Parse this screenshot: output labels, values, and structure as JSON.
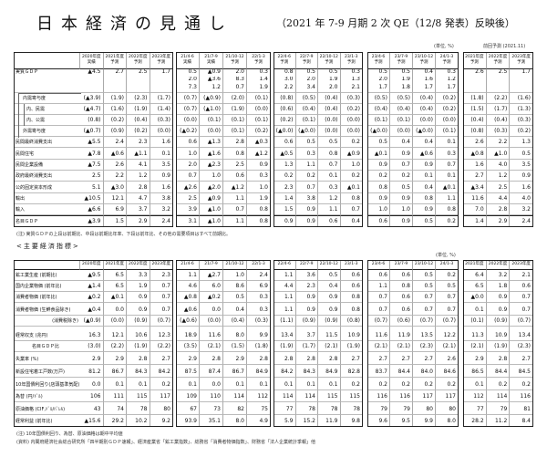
{
  "title": "日本経済の見通し",
  "subtitle": "（2021 年 7-9 月期 2 次 QE（12/8 発表）反映後）",
  "table1": {
    "unit": "(単位, %)",
    "prev_label": "前回予測 (2021.11)",
    "headers": [
      [
        "2020年度",
        "実績"
      ],
      [
        "2021年度",
        "予測"
      ],
      [
        "2022年度",
        "予測"
      ],
      [
        "2023年度",
        "予測"
      ],
      [
        "21/4-6",
        "実績"
      ],
      [
        "21/7-9",
        "実績"
      ],
      [
        "21/10-12",
        "予測"
      ],
      [
        "22/1-3",
        "予測"
      ],
      [
        "22/4-6",
        "予測"
      ],
      [
        "22/7-9",
        "予測"
      ],
      [
        "22/10-12",
        "予測"
      ],
      [
        "23/1-3",
        "予測"
      ],
      [
        "23/4-6",
        "予測"
      ],
      [
        "23/7-9",
        "予測"
      ],
      [
        "23/10-12",
        "予測"
      ],
      [
        "24/1-3",
        "予測"
      ],
      [
        "2021年度",
        "予測"
      ],
      [
        "2022年度",
        "予測"
      ],
      [
        "2023年度",
        "予測"
      ]
    ],
    "rows": [
      {
        "label": "実質ＧＤＰ",
        "values": [
          "▲4.5",
          "2.7",
          "2.5",
          "1.7",
          "0.5",
          "▲0.9",
          "2.0",
          "0.3",
          "0.8",
          "0.5",
          "0.5",
          "0.3",
          "0.5",
          "0.5",
          "0.4",
          "0.3",
          "2.6",
          "2.5",
          "1.7"
        ]
      },
      {
        "label": "",
        "values": [
          "",
          "",
          "",
          "",
          "2.0",
          "▲3.6",
          "8.3",
          "1.4",
          "3.0",
          "2.0",
          "1.9",
          "1.3",
          "2.0",
          "1.9",
          "1.6",
          "1.2",
          "",
          "",
          ""
        ]
      },
      {
        "label": "",
        "values": [
          "",
          "",
          "",
          "",
          "7.3",
          "1.2",
          "0.7",
          "1.9",
          "2.2",
          "3.4",
          "2.0",
          "2.1",
          "1.7",
          "1.8",
          "1.7",
          "1.7",
          "",
          "",
          ""
        ]
      },
      {
        "label": "内需寄与度",
        "values": [
          "(▲3.9)",
          "(1.9)",
          "(2.3)",
          "(1.7)",
          "(0.7)",
          "(▲0.9)",
          "(2.0)",
          "(0.1)",
          "(0.8)",
          "(0.5)",
          "(0.4)",
          "(0.3)",
          "(0.5)",
          "(0.5)",
          "(0.4)",
          "(0.2)",
          "(1.8)",
          "(2.2)",
          "(1.6)"
        ]
      },
      {
        "label": "内、民需",
        "values": [
          "(▲4.7)",
          "(1.6)",
          "(1.9)",
          "(1.4)",
          "(0.7)",
          "(▲1.0)",
          "(1.9)",
          "(0.0)",
          "(0.6)",
          "(0.4)",
          "(0.4)",
          "(0.2)",
          "(0.4)",
          "(0.4)",
          "(0.4)",
          "(0.2)",
          "(1.5)",
          "(1.7)",
          "(1.3)"
        ]
      },
      {
        "label": "内、公需",
        "values": [
          "(0.8)",
          "(0.2)",
          "(0.4)",
          "(0.3)",
          "(0.0)",
          "(0.1)",
          "(0.1)",
          "(0.1)",
          "(0.2)",
          "(0.1)",
          "(0.0)",
          "(0.0)",
          "(0.1)",
          "(0.1)",
          "(0.0)",
          "(0.0)",
          "(0.4)",
          "(0.4)",
          "(0.3)"
        ]
      },
      {
        "label": "外需寄与度",
        "values": [
          "(▲0.7)",
          "(0.9)",
          "(0.2)",
          "(0.0)",
          "(▲0.2)",
          "(0.0)",
          "(0.1)",
          "(0.2)",
          "(▲0.0)",
          "(▲0.0)",
          "(0.0)",
          "(0.0)",
          "(▲0.0)",
          "(0.0)",
          "(▲0.0)",
          "(0.1)",
          "(0.8)",
          "(0.3)",
          "(0.2)"
        ]
      },
      {
        "label": "民間最終消費支出",
        "values": [
          "▲5.5",
          "2.4",
          "2.3",
          "1.6",
          "0.6",
          "▲1.3",
          "2.8",
          "▲0.3",
          "0.6",
          "0.5",
          "0.5",
          "0.2",
          "0.5",
          "0.4",
          "0.4",
          "0.1",
          "2.6",
          "2.2",
          "1.3"
        ]
      },
      {
        "label": "民間住宅",
        "values": [
          "▲7.8",
          "▲0.6",
          "▲1.1",
          "0.1",
          "1.0",
          "▲1.6",
          "0.8",
          "▲1.2",
          "▲0.5",
          "0.3",
          "0.8",
          "▲0.9",
          "▲0.1",
          "0.9",
          "▲0.6",
          "0.3",
          "▲0.8",
          "▲1.0",
          "0.5"
        ]
      },
      {
        "label": "民間企業設備",
        "values": [
          "▲7.5",
          "2.6",
          "4.1",
          "3.5",
          "2.0",
          "▲2.3",
          "2.5",
          "0.9",
          "1.3",
          "1.1",
          "0.7",
          "1.0",
          "0.9",
          "0.7",
          "0.9",
          "0.7",
          "1.6",
          "4.0",
          "3.5"
        ]
      },
      {
        "label": "政府最終消費支出",
        "values": [
          "2.5",
          "2.2",
          "1.2",
          "0.9",
          "0.7",
          "1.0",
          "0.6",
          "0.3",
          "0.2",
          "0.2",
          "0.1",
          "0.2",
          "0.2",
          "0.2",
          "0.1",
          "0.1",
          "2.7",
          "1.2",
          "0.9"
        ]
      },
      {
        "label": "公的固定資本形成",
        "values": [
          "5.1",
          "▲3.0",
          "2.8",
          "1.6",
          "▲2.6",
          "▲2.0",
          "▲1.2",
          "1.0",
          "2.3",
          "0.7",
          "0.3",
          "▲0.1",
          "0.8",
          "0.5",
          "0.4",
          "▲0.1",
          "▲3.4",
          "2.5",
          "1.6"
        ]
      },
      {
        "label": "輸出",
        "values": [
          "▲10.5",
          "12.1",
          "4.7",
          "3.8",
          "2.5",
          "▲0.9",
          "1.1",
          "1.9",
          "1.4",
          "3.8",
          "1.2",
          "0.8",
          "0.9",
          "0.9",
          "0.8",
          "1.1",
          "11.6",
          "4.4",
          "4.0"
        ]
      },
      {
        "label": "輸入",
        "values": [
          "▲6.6",
          "6.9",
          "3.7",
          "3.2",
          "3.9",
          "▲1.0",
          "0.7",
          "0.8",
          "1.5",
          "0.9",
          "1.1",
          "0.7",
          "1.0",
          "1.0",
          "0.9",
          "0.8",
          "7.0",
          "2.8",
          "3.2"
        ]
      },
      {
        "label": "名目ＧＤＰ",
        "values": [
          "▲3.9",
          "1.5",
          "2.9",
          "2.4",
          "3.1",
          "▲1.0",
          "1.1",
          "0.8",
          "0.9",
          "0.9",
          "0.6",
          "0.4",
          "0.6",
          "0.9",
          "0.5",
          "0.2",
          "1.4",
          "2.9",
          "2.4"
        ]
      }
    ],
    "note": "(注) 実質ＧＤＰの上段は前期比、中段は前期比年率、下段は前年比、その他の需要項目はすべて前期比。"
  },
  "section2_title": "<主要経済指標>",
  "table2": {
    "unit": "(単位, %)",
    "headers": [
      "2020年度",
      "2021年度",
      "2022年度",
      "2023年度",
      "21/4-6",
      "21/7-9",
      "21/10-12",
      "22/1-3",
      "22/4-6",
      "22/7-9",
      "22/10-12",
      "23/1-3",
      "23/4-6",
      "23/7-9",
      "23/10-12",
      "24/1-3",
      "2021年度",
      "2022年度",
      "2023年度"
    ],
    "rows": [
      {
        "label": "鉱工業生産 (前期比)",
        "values": [
          "▲9.5",
          "6.5",
          "3.3",
          "2.3",
          "1.1",
          "▲2.7",
          "1.0",
          "2.4",
          "1.1",
          "3.6",
          "0.5",
          "0.6",
          "0.6",
          "0.6",
          "0.5",
          "0.2",
          "6.4",
          "3.2",
          "2.1"
        ]
      },
      {
        "label": "国内企業物価 (前年比)",
        "values": [
          "▲1.4",
          "6.5",
          "1.9",
          "0.7",
          "4.6",
          "6.0",
          "8.6",
          "6.9",
          "4.4",
          "2.3",
          "0.4",
          "0.6",
          "1.1",
          "0.8",
          "0.5",
          "0.5",
          "6.5",
          "1.8",
          "0.6"
        ]
      },
      {
        "label": "消費者物価 (前年比)",
        "values": [
          "▲0.2",
          "▲0.1",
          "0.9",
          "0.7",
          "▲0.8",
          "▲0.2",
          "0.5",
          "0.3",
          "1.1",
          "0.9",
          "0.9",
          "0.8",
          "0.7",
          "0.6",
          "0.7",
          "0.7",
          "▲0.0",
          "0.9",
          "0.7"
        ]
      },
      {
        "label": "消費者物価 (生鮮食品除き)",
        "values": [
          "▲0.4",
          "0.0",
          "0.9",
          "0.7",
          "▲0.6",
          "0.0",
          "0.4",
          "0.3",
          "1.1",
          "0.9",
          "0.9",
          "0.8",
          "0.7",
          "0.6",
          "0.7",
          "0.7",
          "0.1",
          "0.9",
          "0.7"
        ]
      },
      {
        "label": "(消費税除き)",
        "values": [
          "(▲0.9)",
          "(0.0)",
          "(0.9)",
          "(0.7)",
          "(▲0.6)",
          "(0.0)",
          "(0.4)",
          "(0.3)",
          "(1.1)",
          "(0.9)",
          "(0.9)",
          "(0.8)",
          "(0.7)",
          "(0.6)",
          "(0.7)",
          "(0.7)",
          "(0.1)",
          "(0.9)",
          "(0.7)"
        ]
      },
      {
        "label": "経常収支 (兆円)",
        "values": [
          "16.3",
          "12.1",
          "10.6",
          "12.3",
          "18.9",
          "11.6",
          "8.0",
          "9.9",
          "13.4",
          "3.7",
          "11.5",
          "10.9",
          "11.6",
          "11.9",
          "13.5",
          "12.2",
          "11.3",
          "10.9",
          "13.4"
        ]
      },
      {
        "label": "名目ＧＤＰ比",
        "values": [
          "(3.0)",
          "(2.2)",
          "(1.9)",
          "(2.2)",
          "(3.5)",
          "(2.1)",
          "(1.5)",
          "(1.8)",
          "(1.9)",
          "(1.7)",
          "(2.1)",
          "(1.9)",
          "(2.1)",
          "(2.1)",
          "(2.3)",
          "(2.1)",
          "(2.1)",
          "(1.9)",
          "(2.3)"
        ]
      },
      {
        "label": "失業率 (%)",
        "values": [
          "2.9",
          "2.9",
          "2.8",
          "2.7",
          "2.9",
          "2.8",
          "2.9",
          "2.8",
          "2.8",
          "2.8",
          "2.8",
          "2.7",
          "2.7",
          "2.7",
          "2.7",
          "2.6",
          "2.9",
          "2.8",
          "2.7"
        ]
      },
      {
        "label": "新設住宅着工戸数(万戸)",
        "values": [
          "81.2",
          "86.7",
          "84.3",
          "84.2",
          "87.5",
          "87.4",
          "86.7",
          "84.9",
          "84.2",
          "84.3",
          "84.9",
          "82.8",
          "83.7",
          "84.4",
          "84.0",
          "84.6",
          "86.5",
          "84.4",
          "84.5"
        ]
      },
      {
        "label": "10年国債利回り(店頭基準気配)",
        "values": [
          "0.0",
          "0.1",
          "0.1",
          "0.2",
          "0.1",
          "0.0",
          "0.1",
          "0.1",
          "0.1",
          "0.1",
          "0.1",
          "0.2",
          "0.2",
          "0.2",
          "0.2",
          "0.2",
          "0.1",
          "0.2",
          "0.2"
        ]
      },
      {
        "label": "為替 (円/ﾄﾞﾙ)",
        "values": [
          "106",
          "111",
          "115",
          "117",
          "109",
          "110",
          "114",
          "112",
          "114",
          "114",
          "115",
          "115",
          "116",
          "116",
          "117",
          "117",
          "112",
          "114",
          "116"
        ]
      },
      {
        "label": "原油価格 (CIF,ﾄﾞﾙ/ﾊﾞﾚﾙ)",
        "values": [
          "43",
          "74",
          "78",
          "80",
          "67",
          "73",
          "82",
          "75",
          "77",
          "78",
          "78",
          "78",
          "79",
          "79",
          "80",
          "80",
          "77",
          "79",
          "81"
        ]
      },
      {
        "label": "経常利益 (前年比)",
        "values": [
          "▲15.6",
          "29.2",
          "10.2",
          "9.2",
          "93.9",
          "35.1",
          "8.0",
          "4.9",
          "5.9",
          "15.2",
          "11.9",
          "9.8",
          "9.6",
          "9.5",
          "9.9",
          "8.0",
          "28.2",
          "11.2",
          "8.4"
        ]
      }
    ],
    "notes": [
      "(注) 10年国債利回り、為替、原油価格は期中平均値",
      "(資料) 内閣府経済社会総合研究所「四半期別ＧＤＰ速報」、経済産業省「鉱工業指数」、総務省「消費者物価指数」、財務省「法人企業統計季報」他"
    ]
  }
}
